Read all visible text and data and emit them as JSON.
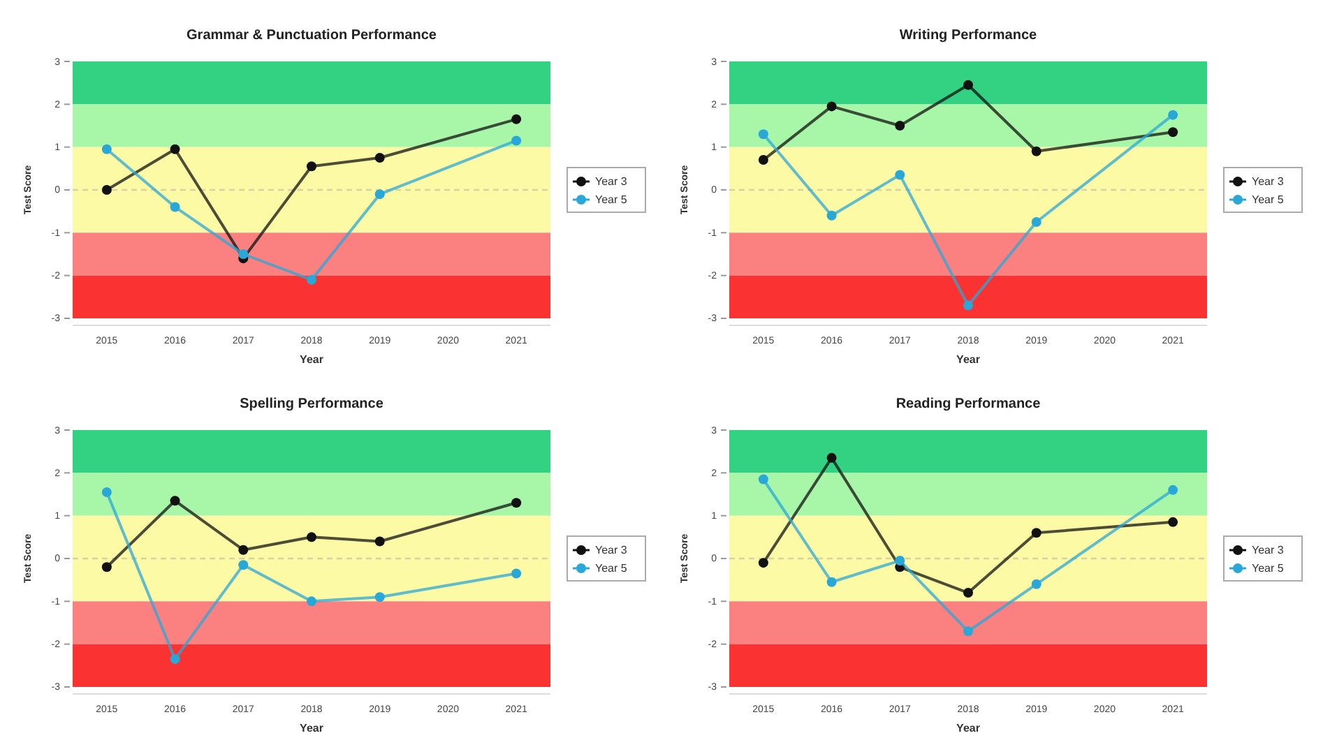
{
  "chart_data": [
    {
      "type": "line",
      "title": "Grammar & Punctuation Performance",
      "xlabel": "Year",
      "ylabel": "Test Score",
      "categories": [
        "2015",
        "2016",
        "2017",
        "2018",
        "2019",
        "2020",
        "2021"
      ],
      "ylim": [
        -3,
        3
      ],
      "yticks": [
        -3,
        -2,
        -1,
        0,
        1,
        2,
        3
      ],
      "grid": false,
      "legend": "right",
      "marker": "circle",
      "series": [
        {
          "name": "Year 3",
          "color": "#111111",
          "values": [
            0.0,
            0.95,
            -1.6,
            0.55,
            0.75,
            null,
            1.65
          ]
        },
        {
          "name": "Year 5",
          "color": "#29a8d8",
          "values": [
            0.95,
            -0.4,
            -1.5,
            -2.1,
            -0.1,
            null,
            1.15
          ]
        }
      ],
      "bands": [
        {
          "axis": "y",
          "from": 2,
          "to": 3,
          "color": "#33d182"
        },
        {
          "axis": "y",
          "from": 1,
          "to": 2,
          "color": "#a8f7a8"
        },
        {
          "axis": "y",
          "from": -1,
          "to": 1,
          "color": "#fdfaa5"
        },
        {
          "axis": "y",
          "from": -2,
          "to": -1,
          "color": "#fb8080"
        },
        {
          "axis": "y",
          "from": -3,
          "to": -2,
          "color": "#fa3232"
        }
      ],
      "ref_lines": [
        {
          "axis": "y",
          "value": 0,
          "color": "#d8d3a0",
          "line_style": "dashed"
        }
      ]
    },
    {
      "type": "line",
      "title": "Writing Performance",
      "xlabel": "Year",
      "ylabel": "Test Score",
      "categories": [
        "2015",
        "2016",
        "2017",
        "2018",
        "2019",
        "2020",
        "2021"
      ],
      "ylim": [
        -3,
        3
      ],
      "yticks": [
        -3,
        -2,
        -1,
        0,
        1,
        2,
        3
      ],
      "grid": false,
      "legend": "right",
      "marker": "circle",
      "series": [
        {
          "name": "Year 3",
          "color": "#111111",
          "values": [
            0.7,
            1.95,
            1.5,
            2.45,
            0.9,
            null,
            1.35
          ]
        },
        {
          "name": "Year 5",
          "color": "#29a8d8",
          "values": [
            1.3,
            -0.6,
            0.35,
            -2.7,
            -0.75,
            null,
            1.75
          ]
        }
      ],
      "bands": [
        {
          "axis": "y",
          "from": 2,
          "to": 3,
          "color": "#33d182"
        },
        {
          "axis": "y",
          "from": 1,
          "to": 2,
          "color": "#a8f7a8"
        },
        {
          "axis": "y",
          "from": -1,
          "to": 1,
          "color": "#fdfaa5"
        },
        {
          "axis": "y",
          "from": -2,
          "to": -1,
          "color": "#fb8080"
        },
        {
          "axis": "y",
          "from": -3,
          "to": -2,
          "color": "#fa3232"
        }
      ],
      "ref_lines": [
        {
          "axis": "y",
          "value": 0,
          "color": "#d8d3a0",
          "line_style": "dashed"
        }
      ]
    },
    {
      "type": "line",
      "title": "Spelling Performance",
      "xlabel": "Year",
      "ylabel": "Test Score",
      "categories": [
        "2015",
        "2016",
        "2017",
        "2018",
        "2019",
        "2020",
        "2021"
      ],
      "ylim": [
        -3,
        3
      ],
      "yticks": [
        -3,
        -2,
        -1,
        0,
        1,
        2,
        3
      ],
      "grid": false,
      "legend": "right",
      "marker": "circle",
      "series": [
        {
          "name": "Year 3",
          "color": "#111111",
          "values": [
            -0.2,
            1.35,
            0.2,
            0.5,
            0.4,
            null,
            1.3
          ]
        },
        {
          "name": "Year 5",
          "color": "#29a8d8",
          "values": [
            1.55,
            -2.35,
            -0.15,
            -1.0,
            -0.9,
            null,
            -0.35
          ]
        }
      ],
      "bands": [
        {
          "axis": "y",
          "from": 2,
          "to": 3,
          "color": "#33d182"
        },
        {
          "axis": "y",
          "from": 1,
          "to": 2,
          "color": "#a8f7a8"
        },
        {
          "axis": "y",
          "from": -1,
          "to": 1,
          "color": "#fdfaa5"
        },
        {
          "axis": "y",
          "from": -2,
          "to": -1,
          "color": "#fb8080"
        },
        {
          "axis": "y",
          "from": -3,
          "to": -2,
          "color": "#fa3232"
        }
      ],
      "ref_lines": [
        {
          "axis": "y",
          "value": 0,
          "color": "#d8d3a0",
          "line_style": "dashed"
        }
      ]
    },
    {
      "type": "line",
      "title": "Reading Performance",
      "xlabel": "Year",
      "ylabel": "Test Score",
      "categories": [
        "2015",
        "2016",
        "2017",
        "2018",
        "2019",
        "2020",
        "2021"
      ],
      "ylim": [
        -3,
        3
      ],
      "yticks": [
        -3,
        -2,
        -1,
        0,
        1,
        2,
        3
      ],
      "grid": false,
      "legend": "right",
      "marker": "circle",
      "series": [
        {
          "name": "Year 3",
          "color": "#111111",
          "values": [
            -0.1,
            2.35,
            -0.2,
            -0.8,
            0.6,
            null,
            0.85
          ]
        },
        {
          "name": "Year 5",
          "color": "#29a8d8",
          "values": [
            1.85,
            -0.55,
            -0.05,
            -1.7,
            -0.6,
            null,
            1.6
          ]
        }
      ],
      "bands": [
        {
          "axis": "y",
          "from": 2,
          "to": 3,
          "color": "#33d182"
        },
        {
          "axis": "y",
          "from": 1,
          "to": 2,
          "color": "#a8f7a8"
        },
        {
          "axis": "y",
          "from": -1,
          "to": 1,
          "color": "#fdfaa5"
        },
        {
          "axis": "y",
          "from": -2,
          "to": -1,
          "color": "#fb8080"
        },
        {
          "axis": "y",
          "from": -3,
          "to": -2,
          "color": "#fa3232"
        }
      ],
      "ref_lines": [
        {
          "axis": "y",
          "value": 0,
          "color": "#d8d3a0",
          "line_style": "dashed"
        }
      ]
    }
  ]
}
